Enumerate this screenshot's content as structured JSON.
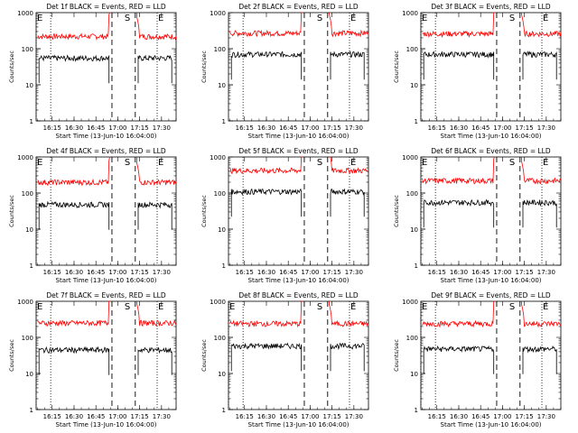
{
  "figure": {
    "background": "#ffffff"
  },
  "chart_data": [
    {
      "type": "line",
      "title": "Det 1f BLACK = Events, RED = LLD",
      "ylabel": "Counts/sec",
      "xlabel": "Start Time (13-Jun-10 16:04:00)",
      "yscale": "log",
      "ylim": [
        1,
        1000
      ],
      "ytick_labels": [
        "1",
        "10",
        "100",
        "1000"
      ],
      "xlim": [
        "16:04",
        "17:40"
      ],
      "xtick_labels": [
        "16:15",
        "16:30",
        "16:45",
        "17:00",
        "17:15",
        "17:30"
      ],
      "series": [
        {
          "name": "RED = LLD",
          "color": "#ff0000",
          "level": 220,
          "segments": [
            [
              "16:05",
              "16:55"
            ],
            [
              "17:13",
              "17:40"
            ]
          ]
        },
        {
          "name": "BLACK = Events",
          "color": "#000000",
          "level": 55,
          "segments": [
            [
              "16:06",
              "16:54"
            ],
            [
              "17:14",
              "17:37"
            ]
          ]
        }
      ],
      "markers": [
        {
          "label": "E",
          "time": "16:04",
          "style": "dotted"
        },
        {
          "label": "",
          "time": "16:14",
          "style": "dotted"
        },
        {
          "label": "",
          "time": "16:56",
          "style": "dashed"
        },
        {
          "label": "S",
          "time": "17:04",
          "style": "none"
        },
        {
          "label": "",
          "time": "17:12",
          "style": "dashed"
        },
        {
          "label": "E",
          "time": "17:27",
          "style": "dotted"
        }
      ]
    },
    {
      "type": "line",
      "title": "Det 2f BLACK = Events, RED = LLD",
      "ylabel": "Counts/sec",
      "xlabel": "Start Time (13-Jun-10 16:04:00)",
      "yscale": "log",
      "ylim": [
        1,
        1000
      ],
      "ytick_labels": [
        "1",
        "10",
        "100",
        "1000"
      ],
      "xlim": [
        "16:04",
        "17:40"
      ],
      "xtick_labels": [
        "16:15",
        "16:30",
        "16:45",
        "17:00",
        "17:15",
        "17:30"
      ],
      "series": [
        {
          "name": "RED = LLD",
          "color": "#ff0000",
          "level": 270,
          "segments": [
            [
              "16:05",
              "16:55"
            ],
            [
              "17:13",
              "17:40"
            ]
          ]
        },
        {
          "name": "BLACK = Events",
          "color": "#000000",
          "level": 70,
          "segments": [
            [
              "16:06",
              "16:54"
            ],
            [
              "17:14",
              "17:37"
            ]
          ]
        }
      ],
      "markers": [
        {
          "label": "",
          "time": "16:14",
          "style": "dotted"
        },
        {
          "label": "",
          "time": "16:56",
          "style": "dashed"
        },
        {
          "label": "S",
          "time": "17:04",
          "style": "none"
        },
        {
          "label": "",
          "time": "17:12",
          "style": "dashed"
        },
        {
          "label": "E",
          "time": "17:27",
          "style": "dotted"
        }
      ]
    },
    {
      "type": "line",
      "title": "Det 3f BLACK = Events, RED = LLD",
      "ylabel": "Counts/sec",
      "xlabel": "Start Time (13-Jun-10 16:04:00)",
      "yscale": "log",
      "ylim": [
        1,
        1000
      ],
      "ytick_labels": [
        "1",
        "10",
        "100",
        "1000"
      ],
      "xlim": [
        "16:04",
        "17:40"
      ],
      "xtick_labels": [
        "16:15",
        "16:30",
        "16:45",
        "17:00",
        "17:15",
        "17:30"
      ],
      "series": [
        {
          "name": "RED = LLD",
          "color": "#ff0000",
          "level": 260,
          "segments": [
            [
              "16:05",
              "16:55"
            ],
            [
              "17:13",
              "17:40"
            ]
          ]
        },
        {
          "name": "BLACK = Events",
          "color": "#000000",
          "level": 70,
          "segments": [
            [
              "16:06",
              "16:54"
            ],
            [
              "17:14",
              "17:37"
            ]
          ]
        }
      ],
      "markers": [
        {
          "label": "E",
          "time": "16:04",
          "style": "dotted"
        },
        {
          "label": "",
          "time": "16:14",
          "style": "dotted"
        },
        {
          "label": "",
          "time": "16:56",
          "style": "dashed"
        },
        {
          "label": "S",
          "time": "17:04",
          "style": "none"
        },
        {
          "label": "",
          "time": "17:12",
          "style": "dashed"
        },
        {
          "label": "E",
          "time": "17:27",
          "style": "dotted"
        }
      ]
    },
    {
      "type": "line",
      "title": "Det 4f BLACK = Events, RED = LLD",
      "ylabel": "Counts/sec",
      "xlabel": "Start Time (13-Jun-10 16:04:00)",
      "yscale": "log",
      "ylim": [
        1,
        1000
      ],
      "ytick_labels": [
        "1",
        "10",
        "100",
        "1000"
      ],
      "xlim": [
        "16:04",
        "17:40"
      ],
      "xtick_labels": [
        "16:15",
        "16:30",
        "16:45",
        "17:00",
        "17:15",
        "17:30"
      ],
      "series": [
        {
          "name": "RED = LLD",
          "color": "#ff0000",
          "level": 200,
          "segments": [
            [
              "16:05",
              "16:55"
            ],
            [
              "17:13",
              "17:40"
            ]
          ]
        },
        {
          "name": "BLACK = Events",
          "color": "#000000",
          "level": 48,
          "segments": [
            [
              "16:06",
              "16:54"
            ],
            [
              "17:14",
              "17:37"
            ]
          ]
        }
      ],
      "markers": [
        {
          "label": "E",
          "time": "16:04",
          "style": "dotted"
        },
        {
          "label": "",
          "time": "16:14",
          "style": "dotted"
        },
        {
          "label": "",
          "time": "16:56",
          "style": "dashed"
        },
        {
          "label": "S",
          "time": "17:04",
          "style": "none"
        },
        {
          "label": "",
          "time": "17:12",
          "style": "dashed"
        },
        {
          "label": "E",
          "time": "17:27",
          "style": "dotted"
        }
      ]
    },
    {
      "type": "line",
      "title": "Det 5f BLACK = Events, RED = LLD",
      "ylabel": "Counts/sec",
      "xlabel": "Start Time (13-Jun-10 16:04:00)",
      "yscale": "log",
      "ylim": [
        1,
        1000
      ],
      "ytick_labels": [
        "1",
        "10",
        "100",
        "1000"
      ],
      "xlim": [
        "16:04",
        "17:40"
      ],
      "xtick_labels": [
        "16:15",
        "16:30",
        "16:45",
        "17:00",
        "17:15",
        "17:30"
      ],
      "series": [
        {
          "name": "RED = LLD",
          "color": "#ff0000",
          "level": 420,
          "segments": [
            [
              "16:05",
              "16:55"
            ],
            [
              "17:13",
              "17:40"
            ]
          ]
        },
        {
          "name": "BLACK = Events",
          "color": "#000000",
          "level": 110,
          "segments": [
            [
              "16:06",
              "16:54"
            ],
            [
              "17:14",
              "17:37"
            ]
          ]
        }
      ],
      "markers": [
        {
          "label": "",
          "time": "16:14",
          "style": "dotted"
        },
        {
          "label": "",
          "time": "16:56",
          "style": "dashed"
        },
        {
          "label": "S",
          "time": "17:04",
          "style": "none"
        },
        {
          "label": "",
          "time": "17:12",
          "style": "dashed"
        },
        {
          "label": "E",
          "time": "17:27",
          "style": "dotted"
        }
      ]
    },
    {
      "type": "line",
      "title": "Det 6f BLACK = Events, RED = LLD",
      "ylabel": "Counts/sec",
      "xlabel": "Start Time (13-Jun-10 16:04:00)",
      "yscale": "log",
      "ylim": [
        1,
        1000
      ],
      "ytick_labels": [
        "1",
        "10",
        "100",
        "1000"
      ],
      "xlim": [
        "16:04",
        "17:40"
      ],
      "xtick_labels": [
        "16:15",
        "16:30",
        "16:45",
        "17:00",
        "17:15",
        "17:30"
      ],
      "series": [
        {
          "name": "RED = LLD",
          "color": "#ff0000",
          "level": 220,
          "segments": [
            [
              "16:05",
              "16:55"
            ],
            [
              "17:13",
              "17:40"
            ]
          ]
        },
        {
          "name": "BLACK = Events",
          "color": "#000000",
          "level": 55,
          "segments": [
            [
              "16:06",
              "16:54"
            ],
            [
              "17:14",
              "17:37"
            ]
          ]
        }
      ],
      "markers": [
        {
          "label": "E",
          "time": "16:04",
          "style": "dotted"
        },
        {
          "label": "",
          "time": "16:14",
          "style": "dotted"
        },
        {
          "label": "",
          "time": "16:56",
          "style": "dashed"
        },
        {
          "label": "S",
          "time": "17:04",
          "style": "none"
        },
        {
          "label": "",
          "time": "17:12",
          "style": "dashed"
        },
        {
          "label": "E",
          "time": "17:27",
          "style": "dotted"
        }
      ]
    },
    {
      "type": "line",
      "title": "Det 7f BLACK = Events, RED = LLD",
      "ylabel": "Counts/sec",
      "xlabel": "Start Time (13-Jun-10 16:04:00)",
      "yscale": "log",
      "ylim": [
        1,
        1000
      ],
      "ytick_labels": [
        "1",
        "10",
        "100",
        "1000"
      ],
      "xlim": [
        "16:04",
        "17:40"
      ],
      "xtick_labels": [
        "16:15",
        "16:30",
        "16:45",
        "17:00",
        "17:15",
        "17:30"
      ],
      "series": [
        {
          "name": "RED = LLD",
          "color": "#ff0000",
          "level": 250,
          "segments": [
            [
              "16:05",
              "16:55"
            ],
            [
              "17:13",
              "17:40"
            ]
          ]
        },
        {
          "name": "BLACK = Events",
          "color": "#000000",
          "level": 45,
          "segments": [
            [
              "16:06",
              "16:54"
            ],
            [
              "17:14",
              "17:37"
            ]
          ]
        }
      ],
      "markers": [
        {
          "label": "E",
          "time": "16:04",
          "style": "dotted"
        },
        {
          "label": "",
          "time": "16:14",
          "style": "dotted"
        },
        {
          "label": "",
          "time": "16:56",
          "style": "dashed"
        },
        {
          "label": "S",
          "time": "17:04",
          "style": "none"
        },
        {
          "label": "",
          "time": "17:12",
          "style": "dashed"
        },
        {
          "label": "E",
          "time": "17:27",
          "style": "dotted"
        }
      ]
    },
    {
      "type": "line",
      "title": "Det 8f BLACK = Events, RED = LLD",
      "ylabel": "Counts/sec",
      "xlabel": "Start Time (13-Jun-10 16:04:00)",
      "yscale": "log",
      "ylim": [
        1,
        1000
      ],
      "ytick_labels": [
        "1",
        "10",
        "100",
        "1000"
      ],
      "xlim": [
        "16:04",
        "17:40"
      ],
      "xtick_labels": [
        "16:15",
        "16:30",
        "16:45",
        "17:00",
        "17:15",
        "17:30"
      ],
      "series": [
        {
          "name": "RED = LLD",
          "color": "#ff0000",
          "level": 240,
          "segments": [
            [
              "16:05",
              "16:55"
            ],
            [
              "17:13",
              "17:40"
            ]
          ]
        },
        {
          "name": "BLACK = Events",
          "color": "#000000",
          "level": 58,
          "segments": [
            [
              "16:06",
              "16:54"
            ],
            [
              "17:14",
              "17:37"
            ]
          ]
        }
      ],
      "markers": [
        {
          "label": "E",
          "time": "16:04",
          "style": "dotted"
        },
        {
          "label": "",
          "time": "16:14",
          "style": "dotted"
        },
        {
          "label": "",
          "time": "16:56",
          "style": "dashed"
        },
        {
          "label": "S",
          "time": "17:04",
          "style": "none"
        },
        {
          "label": "",
          "time": "17:12",
          "style": "dashed"
        },
        {
          "label": "E",
          "time": "17:27",
          "style": "dotted"
        }
      ]
    },
    {
      "type": "line",
      "title": "Det 9f BLACK = Events, RED = LLD",
      "ylabel": "Counts/sec",
      "xlabel": "Start Time (13-Jun-10 16:04:00)",
      "yscale": "log",
      "ylim": [
        1,
        1000
      ],
      "ytick_labels": [
        "1",
        "10",
        "100",
        "1000"
      ],
      "xlim": [
        "16:04",
        "17:40"
      ],
      "xtick_labels": [
        "16:15",
        "16:30",
        "16:45",
        "17:00",
        "17:15",
        "17:30"
      ],
      "series": [
        {
          "name": "RED = LLD",
          "color": "#ff0000",
          "level": 240,
          "segments": [
            [
              "16:05",
              "16:55"
            ],
            [
              "17:13",
              "17:40"
            ]
          ]
        },
        {
          "name": "BLACK = Events",
          "color": "#000000",
          "level": 48,
          "segments": [
            [
              "16:06",
              "16:54"
            ],
            [
              "17:14",
              "17:37"
            ]
          ]
        }
      ],
      "markers": [
        {
          "label": "E",
          "time": "16:04",
          "style": "dotted"
        },
        {
          "label": "",
          "time": "16:14",
          "style": "dotted"
        },
        {
          "label": "",
          "time": "16:56",
          "style": "dashed"
        },
        {
          "label": "S",
          "time": "17:04",
          "style": "none"
        },
        {
          "label": "",
          "time": "17:12",
          "style": "dashed"
        },
        {
          "label": "E",
          "time": "17:27",
          "style": "dotted"
        }
      ]
    }
  ]
}
